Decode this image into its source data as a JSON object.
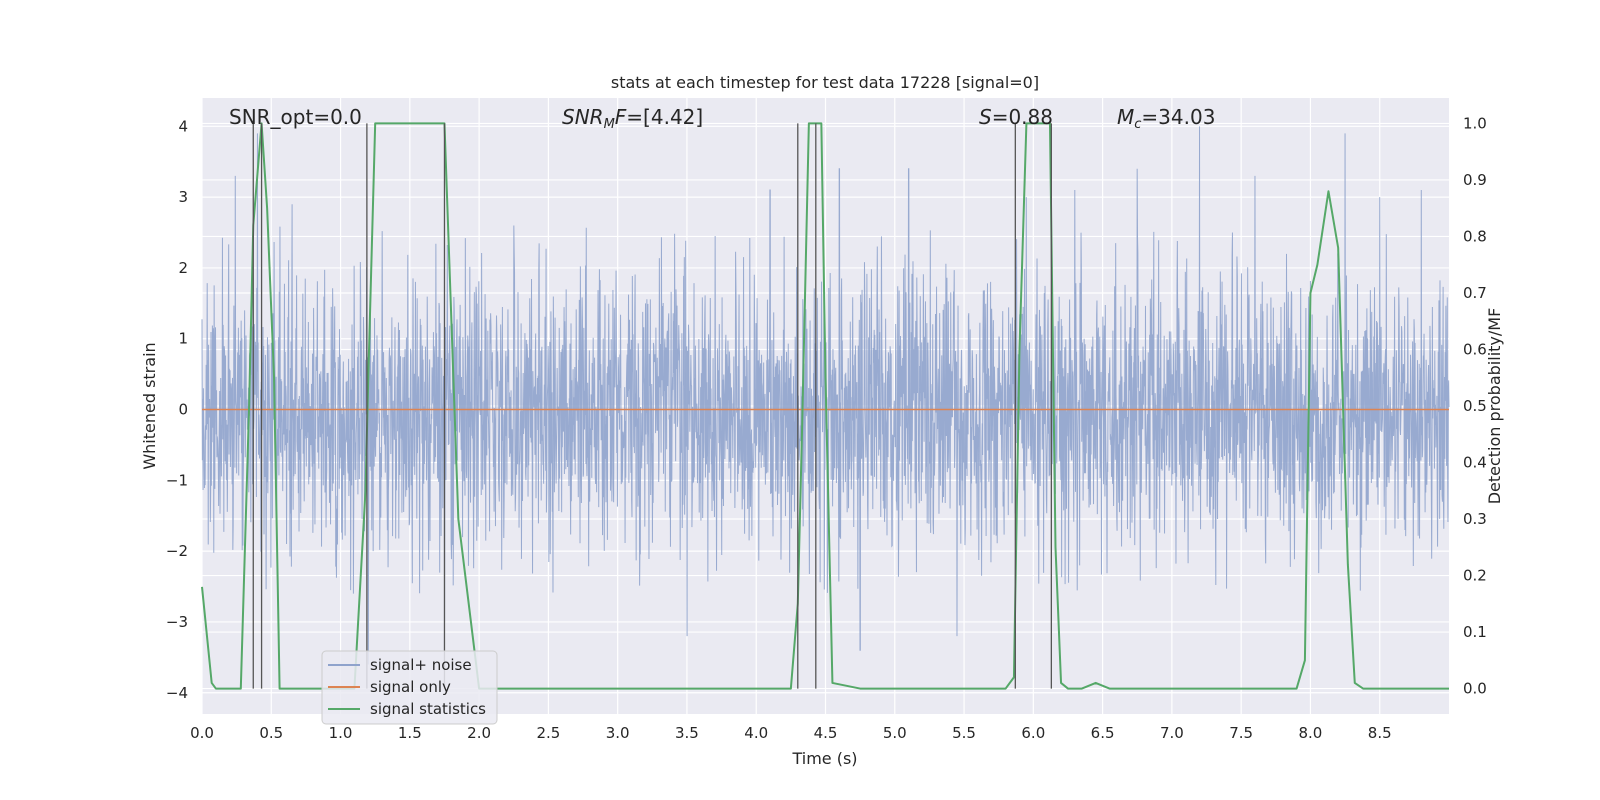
{
  "chart_data": {
    "type": "line",
    "title": "stats at each timestep for test data 17228 [signal=0]",
    "xlabel": "Time (s)",
    "ylabel": "Whitened strain",
    "ylabel_right": "Detection probability/MF",
    "xlim": [
      0.0,
      9.0
    ],
    "ylim": [
      -4.3,
      4.4
    ],
    "ylim_right": [
      -0.045,
      1.045
    ],
    "x_ticks": [
      0.0,
      0.5,
      1.0,
      1.5,
      2.0,
      2.5,
      3.0,
      3.5,
      4.0,
      4.5,
      5.0,
      5.5,
      6.0,
      6.5,
      7.0,
      7.5,
      8.0,
      8.5
    ],
    "x_tick_labels": [
      "0.0",
      "0.5",
      "1.0",
      "1.5",
      "2.0",
      "2.5",
      "3.0",
      "3.5",
      "4.0",
      "4.5",
      "5.0",
      "5.5",
      "6.0",
      "6.5",
      "7.0",
      "7.5",
      "8.0",
      "8.5"
    ],
    "y_ticks": [
      -4,
      -3,
      -2,
      -1,
      0,
      1,
      2,
      3,
      4
    ],
    "y_tick_labels": [
      "−4",
      "−3",
      "−2",
      "−1",
      "0",
      "1",
      "2",
      "3",
      "4"
    ],
    "y_ticks_right": [
      0.0,
      0.1,
      0.2,
      0.3,
      0.4,
      0.5,
      0.6,
      0.7,
      0.8,
      0.9,
      1.0
    ],
    "y_tick_labels_right": [
      "0.0",
      "0.1",
      "0.2",
      "0.3",
      "0.4",
      "0.5",
      "0.6",
      "0.7",
      "0.8",
      "0.9",
      "1.0"
    ],
    "grid": true,
    "annotations": [
      {
        "text": "SNR_opt=0.0",
        "x": 0.2,
        "y": 4.1
      },
      {
        "text": "SNR_MF=[4.42]",
        "x": 2.6,
        "y": 4.1
      },
      {
        "text": "S=0.88",
        "x": 5.6,
        "y": 4.1
      },
      {
        "text": "M_c=34.03",
        "x": 6.6,
        "y": 4.1
      }
    ],
    "series": [
      {
        "name": "signal+ noise",
        "color": "#8fa3cc",
        "description": "dense whitened noise trace, roughly within ±2 with spikes to about ±4",
        "noise_envelope": [
          -2.6,
          2.6
        ],
        "spikes": [
          {
            "x": 0.24,
            "y": 3.3
          },
          {
            "x": 0.4,
            "y": 3.9
          },
          {
            "x": 0.65,
            "y": 2.9
          },
          {
            "x": 1.2,
            "y": -3.6
          },
          {
            "x": 1.75,
            "y": -3.0
          },
          {
            "x": 2.25,
            "y": 2.6
          },
          {
            "x": 3.5,
            "y": -3.2
          },
          {
            "x": 4.1,
            "y": 3.1
          },
          {
            "x": 4.6,
            "y": 3.4
          },
          {
            "x": 4.75,
            "y": -3.4
          },
          {
            "x": 5.1,
            "y": 3.4
          },
          {
            "x": 5.45,
            "y": -3.2
          },
          {
            "x": 5.95,
            "y": 3.0
          },
          {
            "x": 6.3,
            "y": 3.1
          },
          {
            "x": 6.75,
            "y": 3.4
          },
          {
            "x": 7.2,
            "y": 4.0
          },
          {
            "x": 7.6,
            "y": 3.3
          },
          {
            "x": 8.25,
            "y": 3.9
          },
          {
            "x": 8.5,
            "y": 3.0
          },
          {
            "x": 8.8,
            "y": 3.1
          }
        ]
      },
      {
        "name": "signal only",
        "color": "#dd8452",
        "x": [
          0.0,
          9.0
        ],
        "y": [
          0.0,
          0.0
        ]
      },
      {
        "name": "signal statistics",
        "color": "#55a868",
        "axis": "right",
        "x": [
          0.0,
          0.07,
          0.1,
          0.2,
          0.28,
          0.34,
          0.37,
          0.43,
          0.47,
          0.52,
          0.56,
          0.7,
          0.9,
          1.1,
          1.18,
          1.2,
          1.25,
          1.3,
          1.5,
          1.68,
          1.75,
          1.8,
          1.85,
          2.0,
          2.2,
          2.5,
          3.0,
          3.5,
          4.0,
          4.25,
          4.3,
          4.33,
          4.38,
          4.43,
          4.47,
          4.5,
          4.55,
          4.75,
          5.0,
          5.5,
          5.8,
          5.86,
          5.9,
          5.95,
          6.12,
          6.16,
          6.2,
          6.25,
          6.35,
          6.45,
          6.55,
          7.0,
          7.5,
          7.9,
          7.96,
          8.0,
          8.05,
          8.13,
          8.2,
          8.27,
          8.32,
          8.38,
          8.6,
          9.0
        ],
        "y": [
          0.18,
          0.01,
          0.0,
          0.0,
          0.0,
          0.5,
          0.82,
          1.0,
          0.85,
          0.55,
          0.0,
          0.0,
          0.0,
          0.0,
          0.35,
          0.55,
          1.0,
          1.0,
          1.0,
          1.0,
          1.0,
          0.65,
          0.3,
          0.0,
          0.0,
          0.0,
          0.0,
          0.0,
          0.0,
          0.0,
          0.15,
          0.45,
          1.0,
          1.0,
          1.0,
          0.55,
          0.01,
          0.0,
          0.0,
          0.0,
          0.0,
          0.02,
          0.6,
          1.0,
          1.0,
          0.25,
          0.01,
          0.0,
          0.0,
          0.01,
          0.0,
          0.0,
          0.0,
          0.0,
          0.05,
          0.7,
          0.75,
          0.88,
          0.78,
          0.22,
          0.01,
          0.0,
          0.0,
          0.0
        ]
      }
    ],
    "vertical_lines": [
      0.37,
      0.43,
      1.19,
      1.75,
      4.3,
      4.43,
      5.87,
      6.13
    ],
    "vertical_lines_color": "#555555",
    "legend": {
      "placement": "lower-left",
      "entries": [
        "signal+ noise",
        "signal only",
        "signal statistics"
      ]
    }
  }
}
